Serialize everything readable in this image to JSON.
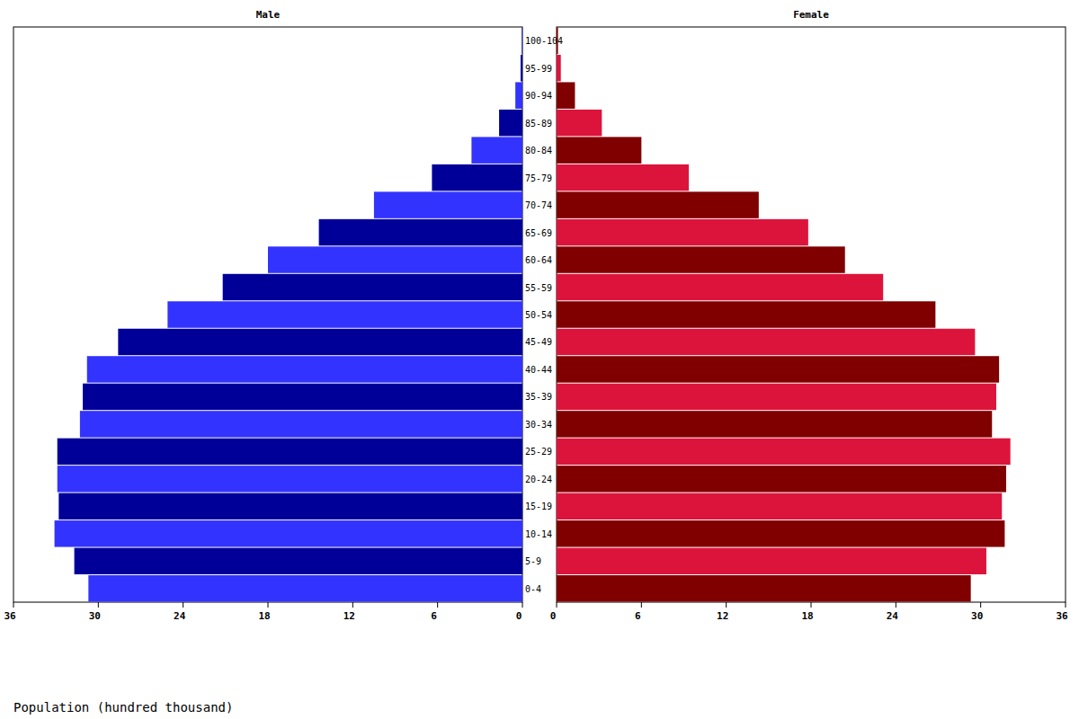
{
  "chart_data": {
    "type": "bar",
    "orientation": "horizontal",
    "xlabel": "Population (hundred thousand)",
    "categories": [
      "0-4",
      "5-9",
      "10-14",
      "15-19",
      "20-24",
      "25-29",
      "30-34",
      "35-39",
      "40-44",
      "45-49",
      "50-54",
      "55-59",
      "60-64",
      "65-69",
      "70-74",
      "75-79",
      "80-84",
      "85-89",
      "90-94",
      "95-99",
      "100-104"
    ],
    "series": [
      {
        "name": "Male",
        "colors": [
          "#3333ff",
          "#000099",
          "#3333ff",
          "#000099",
          "#3333ff",
          "#000099",
          "#3333ff",
          "#000099",
          "#3333ff",
          "#000099",
          "#3333ff",
          "#000099",
          "#3333ff",
          "#000099",
          "#3333ff",
          "#000099",
          "#3333ff",
          "#000099",
          "#3333ff",
          "#000099",
          "#3333ff"
        ],
        "values": [
          30.7,
          31.7,
          33.1,
          32.8,
          32.9,
          32.9,
          31.3,
          31.1,
          30.8,
          28.6,
          25.1,
          21.2,
          18.0,
          14.4,
          10.5,
          6.4,
          3.6,
          1.65,
          0.5,
          0.13,
          0.06
        ]
      },
      {
        "name": "Female",
        "colors": [
          "#800000",
          "#dc143c",
          "#800000",
          "#dc143c",
          "#800000",
          "#dc143c",
          "#800000",
          "#dc143c",
          "#800000",
          "#dc143c",
          "#800000",
          "#dc143c",
          "#800000",
          "#dc143c",
          "#800000",
          "#dc143c",
          "#800000",
          "#dc143c",
          "#800000",
          "#dc143c",
          "#800000"
        ],
        "values": [
          29.3,
          30.4,
          31.7,
          31.5,
          31.8,
          32.1,
          30.8,
          31.1,
          31.3,
          29.6,
          26.8,
          23.1,
          20.4,
          17.8,
          14.3,
          9.35,
          6.0,
          3.2,
          1.3,
          0.3,
          0.1
        ]
      }
    ],
    "xlim": [
      0,
      36
    ],
    "xticks": [
      0,
      6,
      12,
      18,
      24,
      30,
      36
    ],
    "grid": false
  }
}
